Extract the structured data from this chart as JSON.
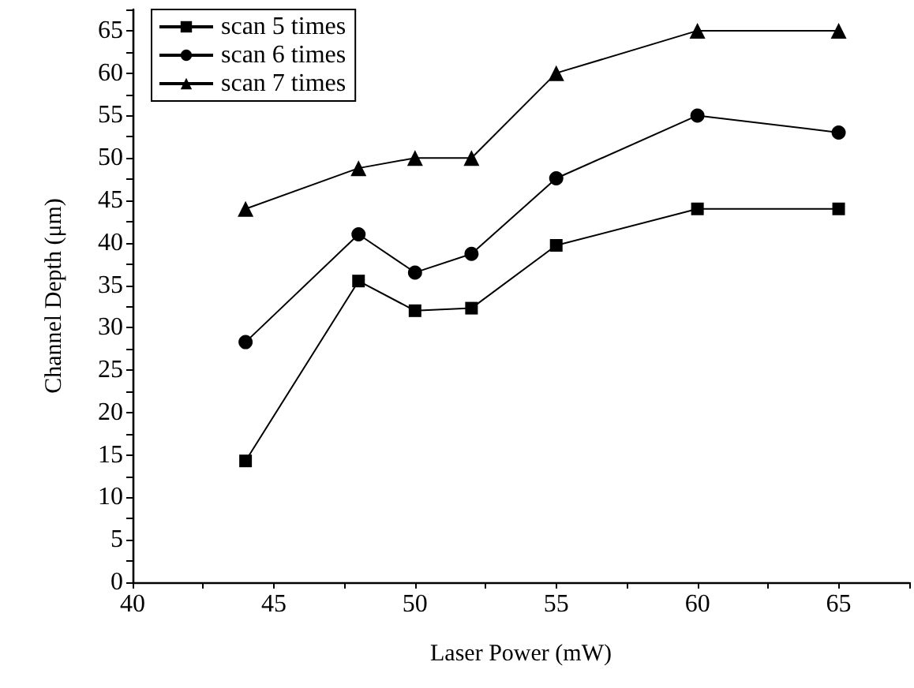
{
  "chart_data": {
    "type": "line",
    "xlabel": "Laser Power (mW)",
    "ylabel": "Channel Depth (μm)",
    "x": [
      44,
      48,
      50,
      52,
      55,
      60,
      65
    ],
    "series": [
      {
        "name": "scan 5 times",
        "color": "#000000",
        "marker": "square",
        "values": [
          14.3,
          35.5,
          32,
          32.3,
          39.7,
          44,
          44
        ]
      },
      {
        "name": "scan 6 times",
        "color": "#000000",
        "marker": "circle",
        "values": [
          28.3,
          41,
          36.5,
          38.7,
          47.6,
          55,
          53
        ]
      },
      {
        "name": "scan 7 times",
        "color": "#000000",
        "marker": "triangle",
        "values": [
          44,
          48.8,
          50,
          50,
          60,
          65,
          65
        ]
      }
    ],
    "xlim": [
      40,
      67.5
    ],
    "xticks": [
      40,
      {
        "value": 42.5,
        "label": null
      },
      45,
      {
        "value": 47.5,
        "label": null
      },
      50,
      {
        "value": 52.5,
        "label": null
      },
      55,
      {
        "value": 57.5,
        "label": null
      },
      60,
      {
        "value": 62.5,
        "label": null
      },
      65,
      {
        "value": 67.5,
        "label": null
      }
    ],
    "ylim": [
      0,
      67.5
    ],
    "yticks": [
      0,
      {
        "value": 2.5,
        "label": null
      },
      5,
      {
        "value": 7.5,
        "label": null
      },
      10,
      {
        "value": 12.5,
        "label": null
      },
      15,
      {
        "value": 17.5,
        "label": null
      },
      20,
      {
        "value": 22.5,
        "label": null
      },
      25,
      {
        "value": 27.5,
        "label": null
      },
      30,
      {
        "value": 32.5,
        "label": null
      },
      35,
      {
        "value": 37.5,
        "label": null
      },
      40,
      {
        "value": 42.5,
        "label": null
      },
      45,
      {
        "value": 47.5,
        "label": null
      },
      50,
      {
        "value": 52.5,
        "label": null
      },
      55,
      {
        "value": 57.5,
        "label": null
      },
      60,
      {
        "value": 62.5,
        "label": null
      },
      65,
      {
        "value": 67.5,
        "label": null
      }
    ],
    "grid": false,
    "legend": "top left",
    "line_style": "solid"
  }
}
